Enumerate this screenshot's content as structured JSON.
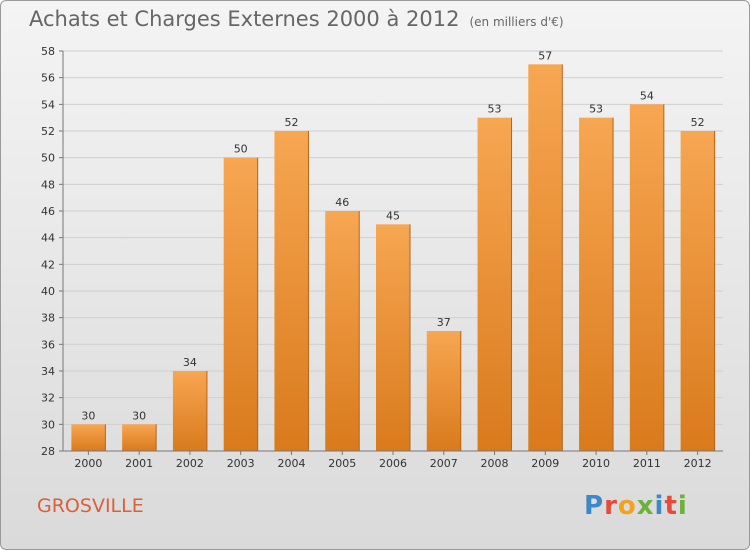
{
  "header": {
    "title": "Achats et Charges Externes 2000 à 2012",
    "subtitle": "(en milliers d'€)"
  },
  "footer": {
    "commune": "GROSVILLE",
    "logo_letters": [
      "P",
      "r",
      "o",
      "x",
      "i",
      "t",
      "i"
    ]
  },
  "colors": {
    "bar_top": "#f7a652",
    "bar_bottom": "#d97a1c",
    "grid": "#cfcfcf",
    "axis_text": "#333333",
    "title_text": "#666666",
    "commune_text": "#d9603a"
  },
  "chart_data": {
    "type": "bar",
    "title": "Achats et Charges Externes 2000 à 2012",
    "subtitle": "(en milliers d'€)",
    "categories": [
      "2000",
      "2001",
      "2002",
      "2003",
      "2004",
      "2005",
      "2006",
      "2007",
      "2008",
      "2009",
      "2010",
      "2011",
      "2012"
    ],
    "values": [
      30,
      30,
      34,
      50,
      52,
      46,
      45,
      37,
      53,
      57,
      53,
      54,
      52
    ],
    "ylim": [
      28,
      58
    ],
    "yticks": [
      28,
      30,
      32,
      34,
      36,
      38,
      40,
      42,
      44,
      46,
      48,
      50,
      52,
      54,
      56,
      58
    ],
    "grid": true,
    "data_labels": true
  }
}
